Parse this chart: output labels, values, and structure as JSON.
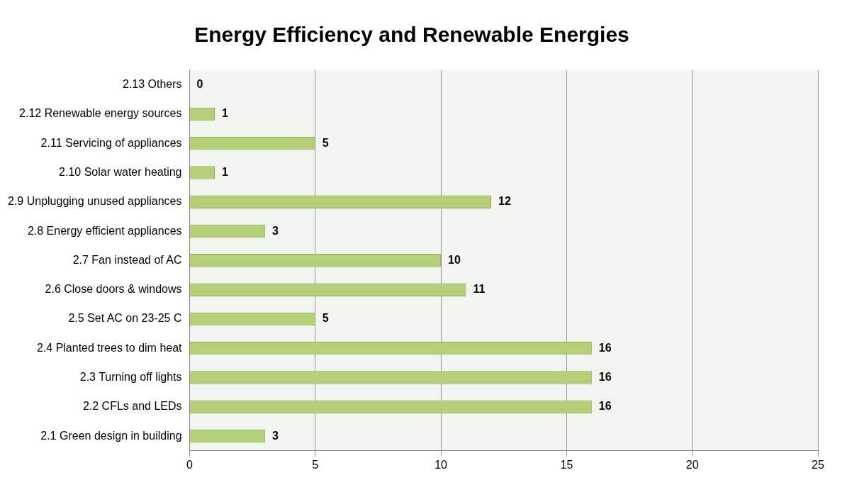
{
  "chart_data": {
    "type": "bar",
    "orientation": "horizontal",
    "title": "Energy Efficiency and Renewable Energies",
    "categories": [
      "2.13 Others",
      "2.12 Renewable energy sources",
      "2.11 Servicing of appliances",
      "2.10 Solar water heating",
      "2.9 Unplugging unused appliances",
      "2.8 Energy efficient appliances",
      "2.7 Fan instead of AC",
      "2.6 Close doors & windows",
      "2.5 Set AC on 23-25 C",
      "2.4 Planted trees to dim heat",
      "2.3 Turning off lights",
      "2.2 CFLs and LEDs",
      "2.1 Green design in building"
    ],
    "values": [
      0,
      1,
      5,
      1,
      12,
      3,
      10,
      11,
      5,
      16,
      16,
      16,
      3
    ],
    "color": "#b3cf78",
    "xlim": [
      0,
      25
    ],
    "xticks": [
      0,
      5,
      10,
      15,
      20,
      25
    ],
    "grid": "x",
    "legend": false,
    "data_labels": true
  }
}
